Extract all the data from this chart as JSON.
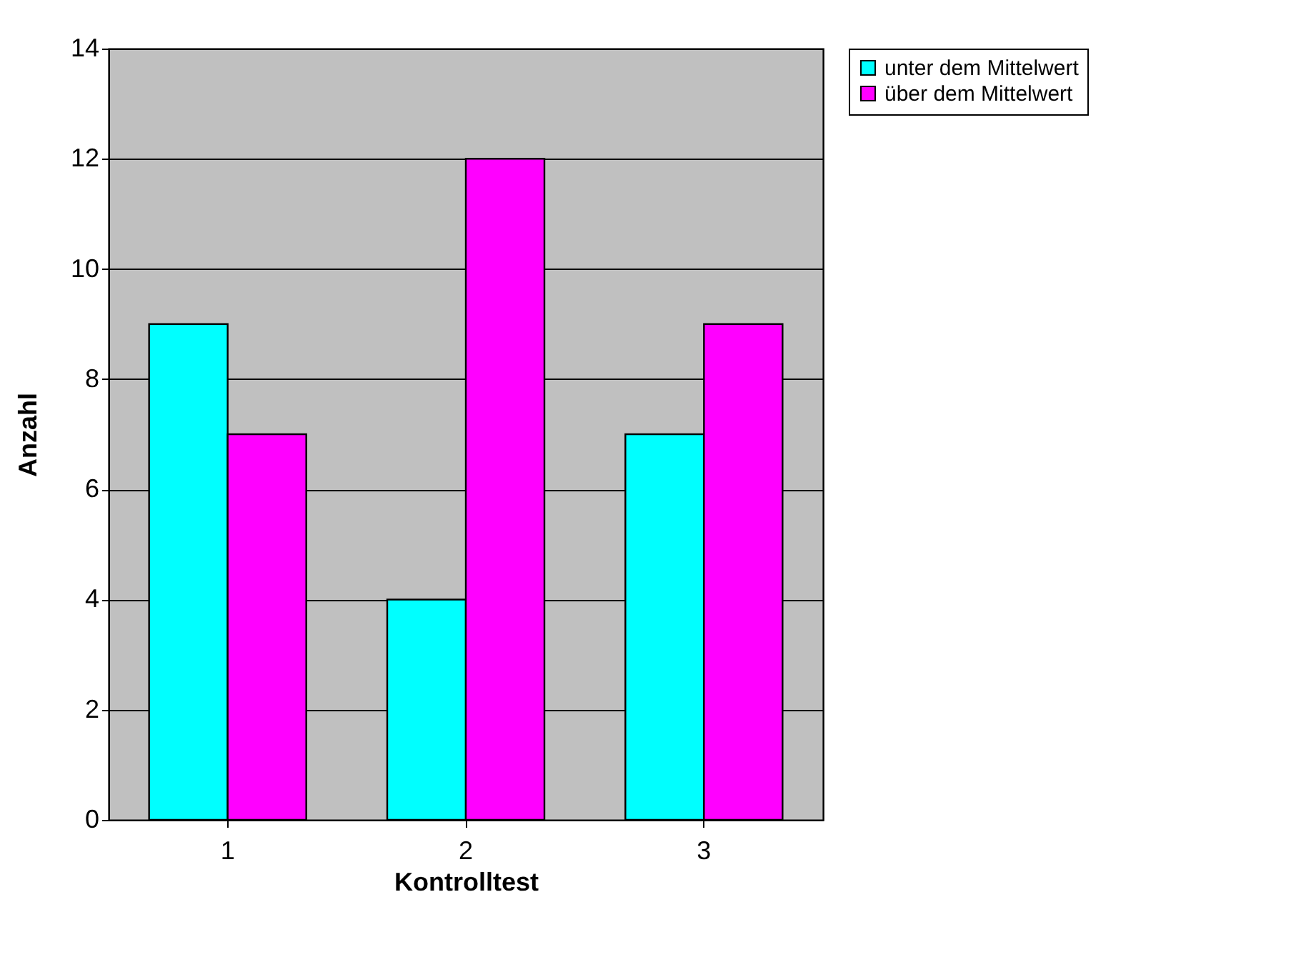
{
  "chart_data": {
    "type": "bar",
    "xlabel": "Kontrolltest",
    "ylabel": "Anzahl",
    "categories": [
      "1",
      "2",
      "3"
    ],
    "series": [
      {
        "name": "unter dem Mittelwert",
        "color": "#00ffff",
        "values": [
          9,
          4,
          7
        ]
      },
      {
        "name": "über dem Mittelwert",
        "color": "#ff00ff",
        "values": [
          7,
          12,
          9
        ]
      }
    ],
    "ylim": [
      0,
      14
    ],
    "yticks": [
      0,
      2,
      4,
      6,
      8,
      10,
      12,
      14
    ],
    "grid": "y",
    "legend": "right"
  }
}
